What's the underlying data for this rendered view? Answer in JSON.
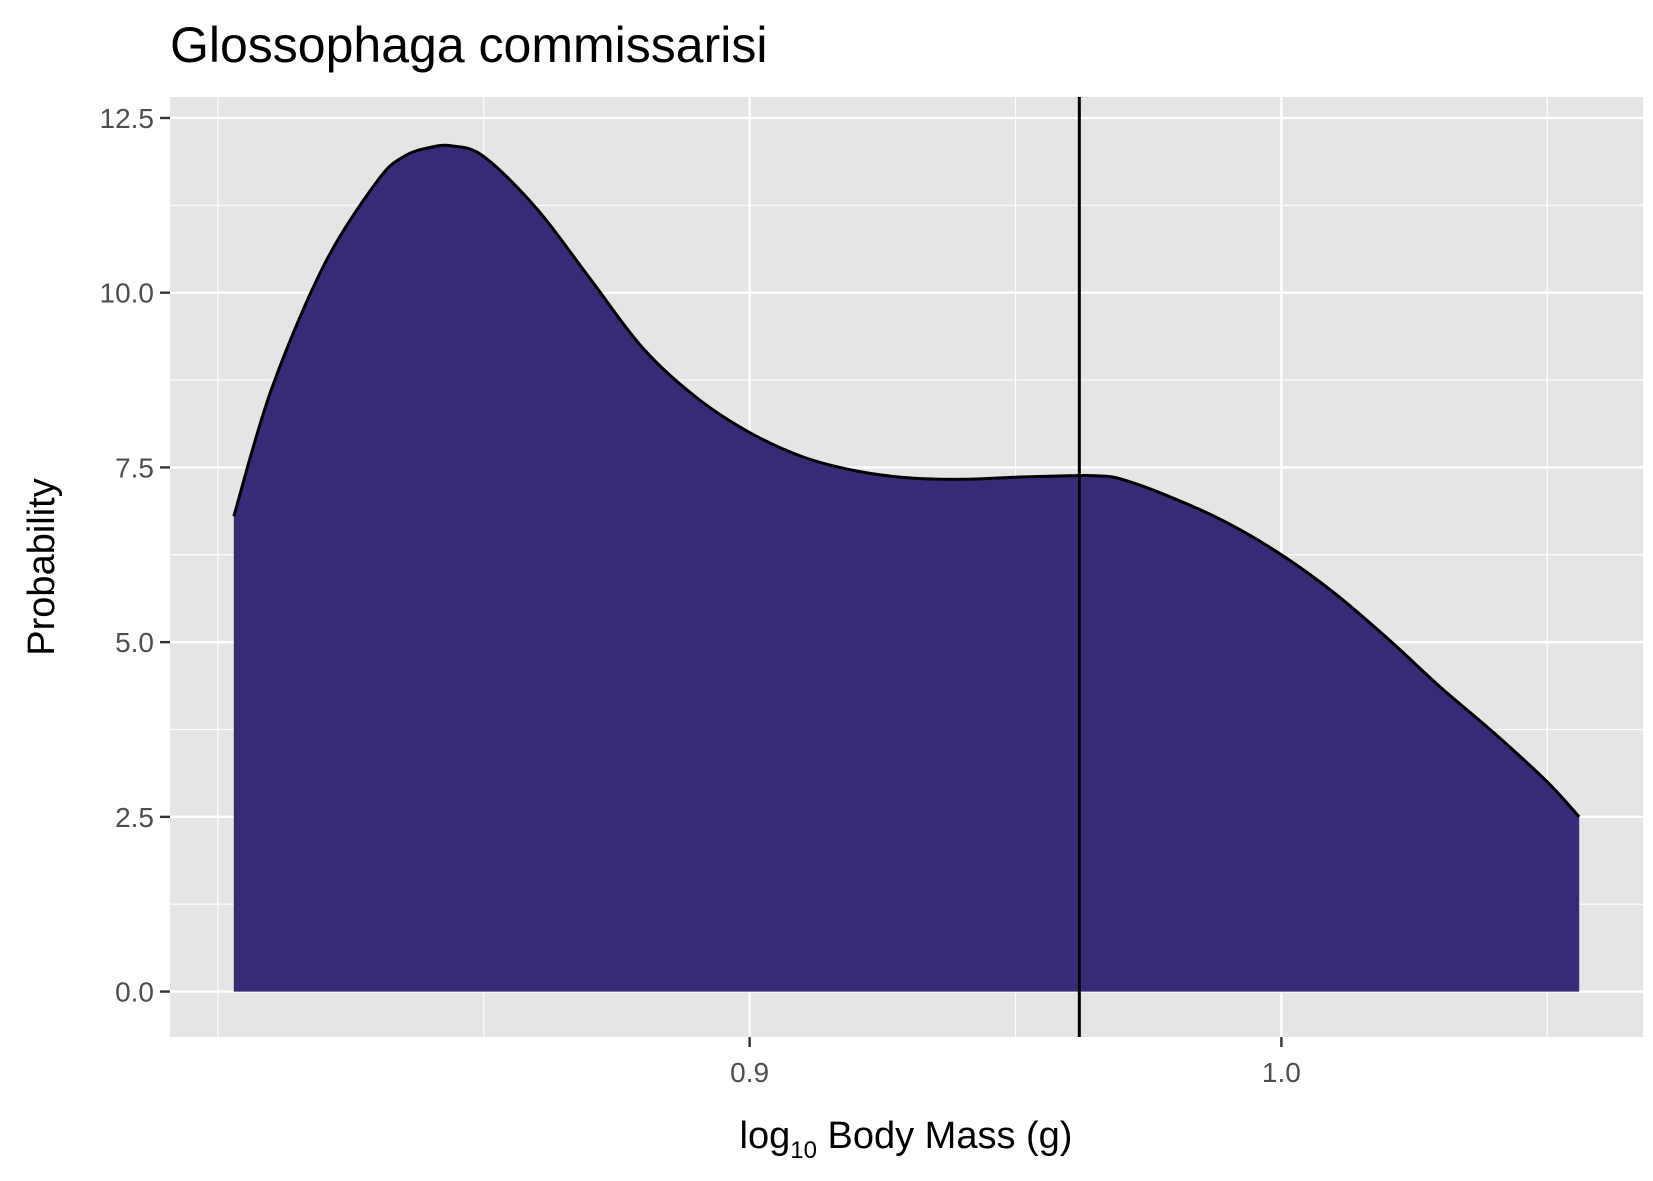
{
  "chart_data": {
    "type": "area",
    "title": "Glossophaga commissarisi",
    "xlabel_prefix": "log",
    "xlabel_sub": "10",
    "xlabel_suffix": " Body Mass (g)",
    "ylabel": "Probability",
    "xlim": [
      0.791,
      1.068
    ],
    "ylim": [
      -0.65,
      12.8
    ],
    "x_ticks": [
      0.9,
      1.0
    ],
    "x_tick_labels": [
      "0.9",
      "1.0"
    ],
    "x_minor_ticks": [
      0.8,
      0.85,
      0.95,
      1.05
    ],
    "y_ticks": [
      0.0,
      2.5,
      5.0,
      7.5,
      10.0,
      12.5
    ],
    "y_tick_labels": [
      "0.0",
      "2.5",
      "5.0",
      "7.5",
      "10.0",
      "12.5"
    ],
    "y_minor_ticks": [
      1.25,
      3.75,
      6.25,
      8.75,
      11.25
    ],
    "grid": true,
    "fill_color": "#372a77",
    "line_color": "#000000",
    "panel_color": "#e5e5e5",
    "vline_x": 0.962,
    "series": [
      {
        "x": [
          0.803,
          0.81,
          0.82,
          0.83,
          0.835,
          0.84,
          0.844,
          0.85,
          0.86,
          0.87,
          0.88,
          0.89,
          0.9,
          0.91,
          0.92,
          0.93,
          0.94,
          0.95,
          0.96,
          0.965,
          0.97,
          0.98,
          0.99,
          1.0,
          1.01,
          1.02,
          1.03,
          1.04,
          1.05,
          1.056
        ],
        "y": [
          6.8,
          8.6,
          10.4,
          11.6,
          11.95,
          12.08,
          12.1,
          11.95,
          11.2,
          10.2,
          9.2,
          8.5,
          8.0,
          7.65,
          7.45,
          7.35,
          7.33,
          7.36,
          7.38,
          7.38,
          7.33,
          7.05,
          6.7,
          6.25,
          5.7,
          5.05,
          4.35,
          3.7,
          3.0,
          2.5
        ]
      }
    ]
  }
}
